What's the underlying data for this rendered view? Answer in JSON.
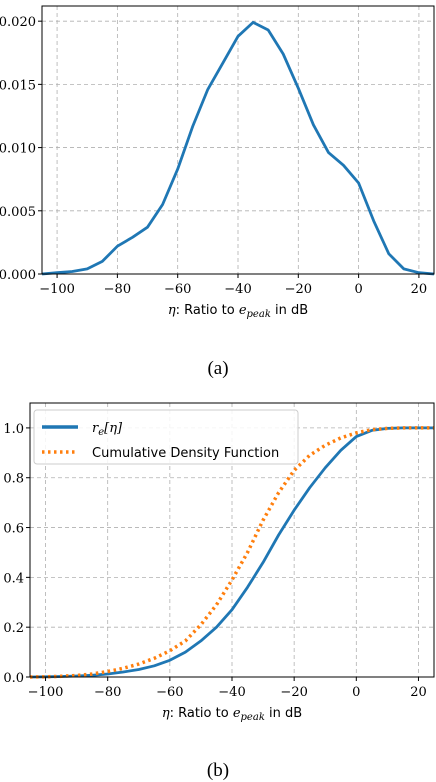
{
  "chart_data": [
    {
      "type": "line",
      "caption": "(a)",
      "xlabel": {
        "math": "η",
        "text": ": Ratio to ",
        "e": "e",
        "sub": "peak",
        "unit": " in dB"
      },
      "xlim": [
        -105,
        25
      ],
      "ylim": [
        0,
        0.0212
      ],
      "xticks": [
        -100,
        -80,
        -60,
        -40,
        -20,
        0,
        20
      ],
      "yticks": [
        0.0,
        0.005,
        0.01,
        0.015,
        0.02
      ],
      "ytick_labels": [
        "0.000",
        "0.005",
        "0.010",
        "0.015",
        "0.020"
      ],
      "grid": true,
      "series": [
        {
          "color": "#1f77b4",
          "style": "solid",
          "x": [
            -105,
            -100,
            -95,
            -90,
            -85,
            -80,
            -75,
            -70,
            -65,
            -60,
            -55,
            -50,
            -45,
            -40,
            -35,
            -30,
            -25,
            -20,
            -15,
            -10,
            -5,
            0,
            5,
            10,
            15,
            20,
            25
          ],
          "y": [
            0.0,
            0.0001,
            0.0002,
            0.0004,
            0.001,
            0.0022,
            0.0029,
            0.0037,
            0.0055,
            0.0083,
            0.0117,
            0.0146,
            0.0167,
            0.0188,
            0.0199,
            0.0193,
            0.0174,
            0.0147,
            0.0118,
            0.0096,
            0.0086,
            0.0072,
            0.0042,
            0.0016,
            0.0004,
            0.0001,
            0.0
          ]
        }
      ]
    },
    {
      "type": "line",
      "caption": "(b)",
      "xlabel": {
        "math": "η",
        "text": ": Ratio to ",
        "e": "e",
        "sub": "peak",
        "unit": " in dB"
      },
      "xlim": [
        -105,
        25
      ],
      "ylim": [
        0,
        1.1
      ],
      "xticks": [
        -100,
        -80,
        -60,
        -40,
        -20,
        0,
        20
      ],
      "yticks": [
        0.0,
        0.2,
        0.4,
        0.6,
        0.8,
        1.0
      ],
      "ytick_labels": [
        "0.0",
        "0.2",
        "0.4",
        "0.6",
        "0.8",
        "1.0"
      ],
      "grid": true,
      "legend_position": "top-left",
      "series": [
        {
          "name": "r_e[η]",
          "legend": {
            "r": "r",
            "sub": "e",
            "rest": "[η]"
          },
          "color": "#1f77b4",
          "style": "solid",
          "x": [
            -105,
            -100,
            -95,
            -90,
            -85,
            -80,
            -75,
            -70,
            -65,
            -60,
            -55,
            -50,
            -45,
            -40,
            -35,
            -30,
            -25,
            -20,
            -15,
            -10,
            -5,
            0,
            5,
            10,
            15,
            20,
            25
          ],
          "y": [
            0.0,
            0.001,
            0.002,
            0.004,
            0.007,
            0.012,
            0.02,
            0.03,
            0.045,
            0.067,
            0.1,
            0.145,
            0.2,
            0.27,
            0.36,
            0.46,
            0.57,
            0.67,
            0.76,
            0.84,
            0.91,
            0.965,
            0.99,
            0.998,
            1.0,
            1.0,
            1.0
          ]
        },
        {
          "name": "Cumulative Density Function",
          "color": "#ff7f0e",
          "style": "dotted",
          "x": [
            -105,
            -100,
            -95,
            -90,
            -85,
            -80,
            -75,
            -70,
            -65,
            -60,
            -55,
            -50,
            -45,
            -40,
            -35,
            -30,
            -25,
            -20,
            -15,
            -10,
            -5,
            0,
            5,
            10,
            15,
            20,
            25
          ],
          "y": [
            0.0,
            0.001,
            0.003,
            0.006,
            0.012,
            0.022,
            0.035,
            0.052,
            0.075,
            0.105,
            0.145,
            0.21,
            0.29,
            0.39,
            0.5,
            0.63,
            0.74,
            0.83,
            0.89,
            0.93,
            0.96,
            0.98,
            0.993,
            0.998,
            1.0,
            1.0,
            1.0
          ]
        }
      ]
    }
  ]
}
